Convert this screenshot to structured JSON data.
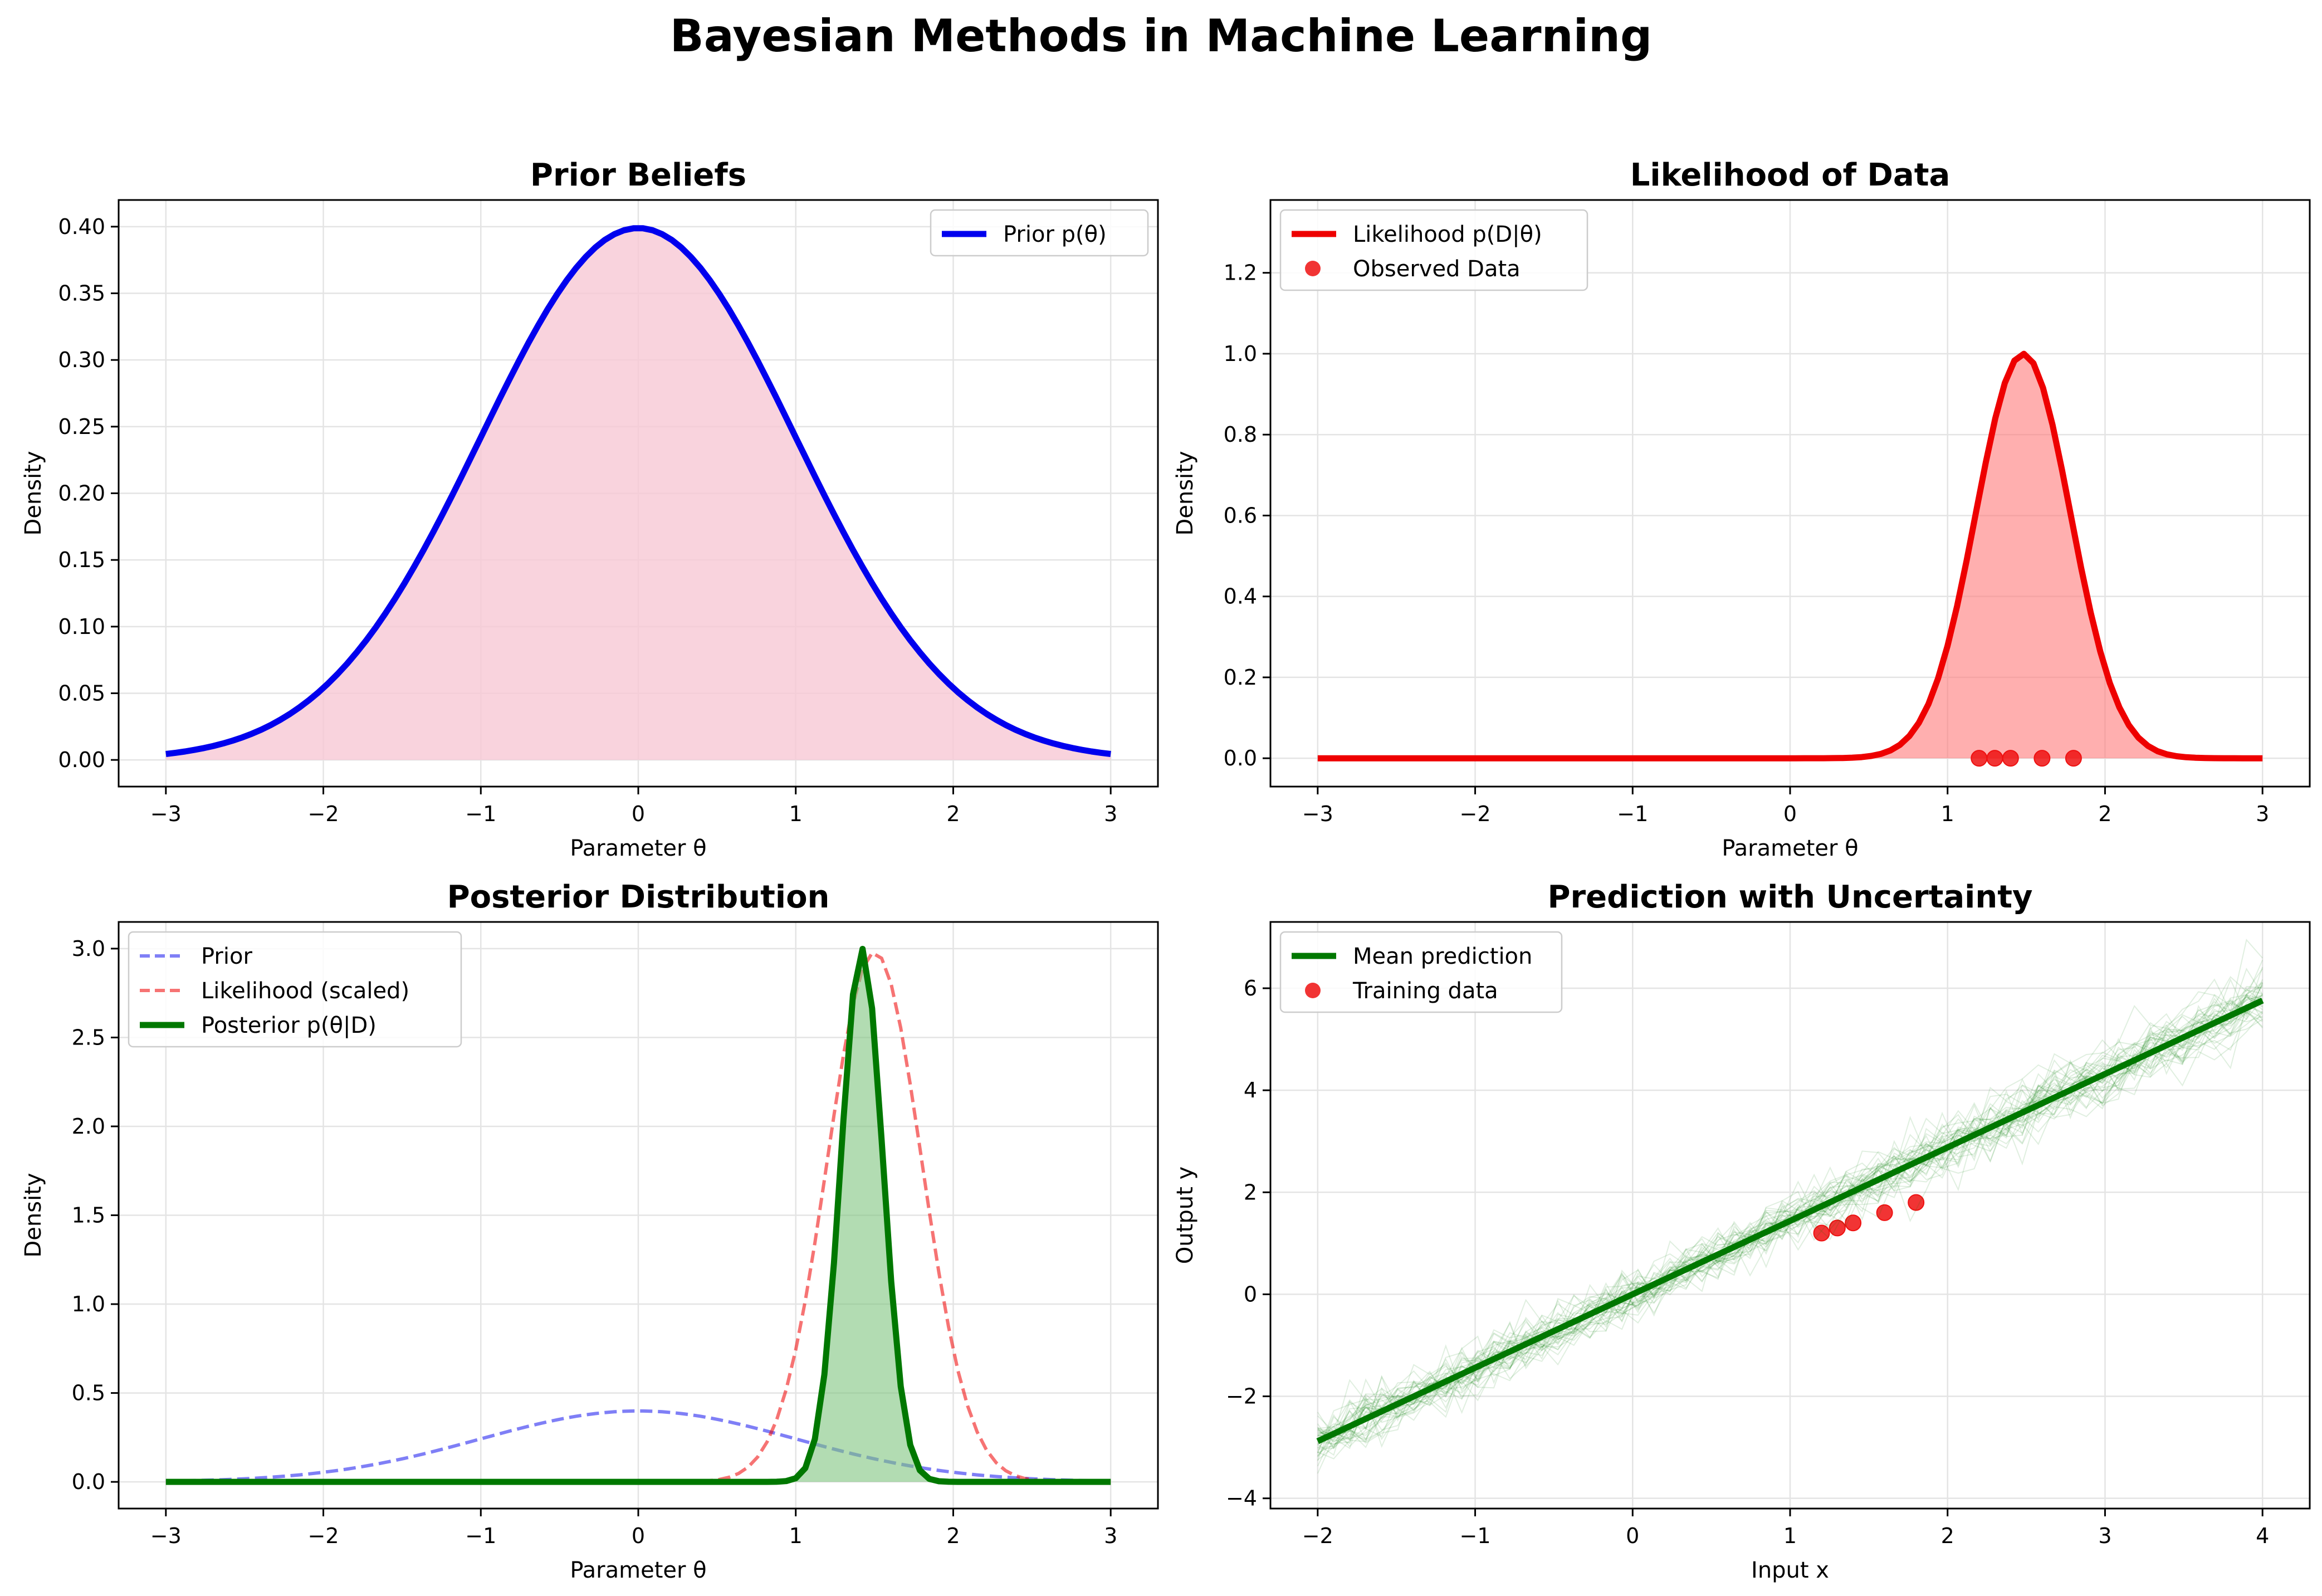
{
  "figure": {
    "title": "Bayesian Methods in Machine Learning"
  },
  "colors": {
    "prior": "#0000ee",
    "prior_fill": "#f8c8d4",
    "likelihood": "#ee0000",
    "likelihood_fill": "#ff7a7a",
    "posterior": "#007800",
    "posterior_fill": "#7fc47f",
    "grid": "#e4e4e4",
    "points": "#ee1111"
  },
  "chart_data": [
    {
      "id": "prior",
      "type": "area",
      "title": "Prior Beliefs",
      "xlabel": "Parameter θ",
      "ylabel": "Density",
      "xlim": [
        -3.3,
        3.3
      ],
      "ylim": [
        -0.02,
        0.42
      ],
      "xticks": [
        -3,
        -2,
        -1,
        0,
        1,
        2,
        3
      ],
      "xticklabels": [
        "−3",
        "−2",
        "−1",
        "0",
        "1",
        "2",
        "3"
      ],
      "yticks": [
        0,
        0.05,
        0.1,
        0.15,
        0.2,
        0.25,
        0.3,
        0.35,
        0.4
      ],
      "yticklabels": [
        "0.00",
        "0.05",
        "0.10",
        "0.15",
        "0.20",
        "0.25",
        "0.30",
        "0.35",
        "0.40"
      ],
      "legend": {
        "position": "top-right",
        "entries": [
          "Prior p(θ)"
        ]
      },
      "series": [
        {
          "name": "Prior p(θ)",
          "kind": "normal_pdf",
          "mean": 0,
          "sd": 1,
          "x_range": [
            -3,
            3
          ],
          "fill": true
        }
      ]
    },
    {
      "id": "likelihood",
      "type": "area",
      "title": "Likelihood of Data",
      "xlabel": "Parameter θ",
      "ylabel": "Density",
      "xlim": [
        -3.3,
        3.3
      ],
      "ylim": [
        -0.07,
        1.38
      ],
      "xticks": [
        -3,
        -2,
        -1,
        0,
        1,
        2,
        3
      ],
      "xticklabels": [
        "−3",
        "−2",
        "−1",
        "0",
        "1",
        "2",
        "3"
      ],
      "yticks": [
        0,
        0.2,
        0.4,
        0.6,
        0.8,
        1.0,
        1.2
      ],
      "yticklabels": [
        "0.0",
        "0.2",
        "0.4",
        "0.6",
        "0.8",
        "1.0",
        "1.2"
      ],
      "legend": {
        "position": "top-left",
        "entries": [
          "Likelihood p(D|θ)",
          "Observed Data"
        ]
      },
      "series": [
        {
          "name": "Likelihood p(D|θ)",
          "kind": "normal_pdf",
          "mean": 1.48,
          "sd": 0.3,
          "scale": 1.0,
          "x_range": [
            -3,
            3
          ],
          "fill": true
        },
        {
          "name": "Observed Data",
          "kind": "scatter",
          "x": [
            1.2,
            1.3,
            1.4,
            1.6,
            1.8
          ],
          "y": [
            0,
            0,
            0,
            0,
            0
          ]
        }
      ]
    },
    {
      "id": "posterior",
      "type": "area",
      "title": "Posterior Distribution",
      "xlabel": "Parameter θ",
      "ylabel": "Density",
      "xlim": [
        -3.3,
        3.3
      ],
      "ylim": [
        -0.15,
        3.15
      ],
      "xticks": [
        -3,
        -2,
        -1,
        0,
        1,
        2,
        3
      ],
      "xticklabels": [
        "−3",
        "−2",
        "−1",
        "0",
        "1",
        "2",
        "3"
      ],
      "yticks": [
        0,
        0.5,
        1.0,
        1.5,
        2.0,
        2.5,
        3.0
      ],
      "yticklabels": [
        "0.0",
        "0.5",
        "1.0",
        "1.5",
        "2.0",
        "2.5",
        "3.0"
      ],
      "legend": {
        "position": "top-left",
        "entries": [
          "Prior",
          "Likelihood (scaled)",
          "Posterior p(θ|D)"
        ]
      },
      "series": [
        {
          "name": "Prior",
          "kind": "normal_pdf",
          "mean": 0,
          "sd": 1,
          "x_range": [
            -3,
            3
          ],
          "style": "dashed"
        },
        {
          "name": "Likelihood (scaled)",
          "kind": "normal_pdf",
          "mean": 1.5,
          "sd": 0.3,
          "scale": 2.98,
          "x_range": [
            -3,
            3
          ],
          "style": "dashed"
        },
        {
          "name": "Posterior p(θ|D)",
          "kind": "normal_pdf",
          "mean": 1.42,
          "sd": 0.133,
          "scale": 3.0,
          "x_range": [
            -3,
            3
          ],
          "fill": true
        }
      ]
    },
    {
      "id": "prediction",
      "type": "line",
      "title": "Prediction with Uncertainty",
      "xlabel": "Input x",
      "ylabel": "Output y",
      "xlim": [
        -2.3,
        4.3
      ],
      "ylim": [
        -4.2,
        7.3
      ],
      "xticks": [
        -2,
        -1,
        0,
        1,
        2,
        3,
        4
      ],
      "xticklabels": [
        "−2",
        "−1",
        "0",
        "1",
        "2",
        "3",
        "4"
      ],
      "yticks": [
        -4,
        -2,
        0,
        2,
        4,
        6
      ],
      "yticklabels": [
        "−4",
        "−2",
        "0",
        "2",
        "4",
        "6"
      ],
      "legend": {
        "position": "top-left",
        "entries": [
          "Mean prediction",
          "Training data"
        ]
      },
      "series": [
        {
          "name": "Mean prediction",
          "kind": "line",
          "x": [
            -2,
            4
          ],
          "y": [
            -2.88,
            5.76
          ]
        },
        {
          "name": "Training data",
          "kind": "scatter",
          "x": [
            1.2,
            1.3,
            1.4,
            1.6,
            1.8
          ],
          "y": [
            1.2,
            1.3,
            1.4,
            1.6,
            1.8
          ]
        },
        {
          "name": "sample predictions",
          "kind": "samples",
          "count": 40,
          "slope_mean": 1.44,
          "slope_sd": 0.04,
          "noise_sd": 0.25,
          "x_range": [
            -2,
            4
          ]
        }
      ]
    }
  ]
}
